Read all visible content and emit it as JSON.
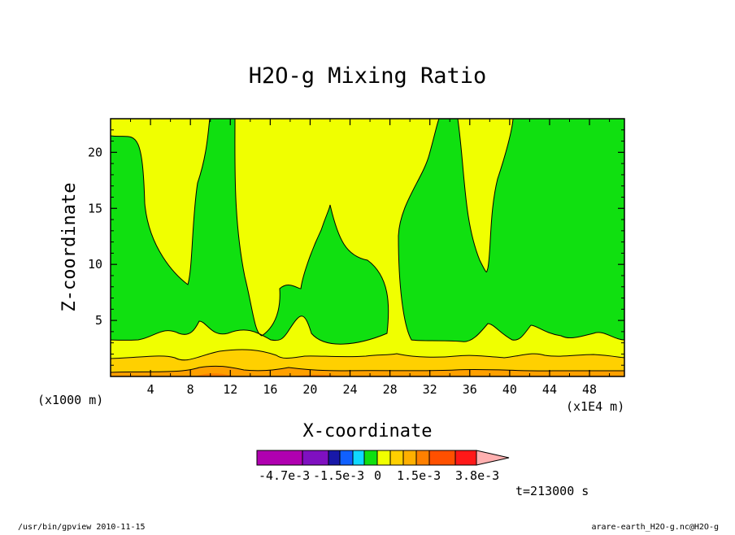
{
  "chart_data": {
    "type": "contour",
    "title": "H2O-g Mixing Ratio",
    "xlabel": "X-coordinate",
    "ylabel": "Z-coordinate",
    "x_unit_left": "(x1000 m)",
    "x_unit_right": "(x1E4 m)",
    "xlim": [
      0,
      51.5
    ],
    "ylim": [
      0,
      23
    ],
    "x_ticks": [
      "4",
      "8",
      "12",
      "16",
      "20",
      "24",
      "28",
      "32",
      "36",
      "40",
      "44",
      "48"
    ],
    "y_ticks": [
      "5",
      "10",
      "15",
      "20"
    ],
    "time_label": "t=213000 s",
    "colorbar": {
      "labels": [
        "-4.7e-3",
        "-1.5e-3",
        "0",
        "1.5e-3",
        "3.8e-3"
      ],
      "colors": [
        "#b000b0",
        "#7f10c0",
        "#1818a8",
        "#1060ff",
        "#10d8ff",
        "#10e010",
        "#f0ff00",
        "#ffd000",
        "#ffb000",
        "#ff8000",
        "#ff5000",
        "#ff1818",
        "#ff7070",
        "#ffb0b0"
      ]
    },
    "fill_colors": {
      "green": "#10e010",
      "yellow": "#f0ff00",
      "gold": "#ffd000",
      "orange": "#ffa000",
      "deep_orange": "#ff8000"
    }
  },
  "footer": {
    "left": "/usr/bin/gpview   2010-11-15",
    "right": "arare-earth_H2O-g.nc@H2O-g"
  }
}
